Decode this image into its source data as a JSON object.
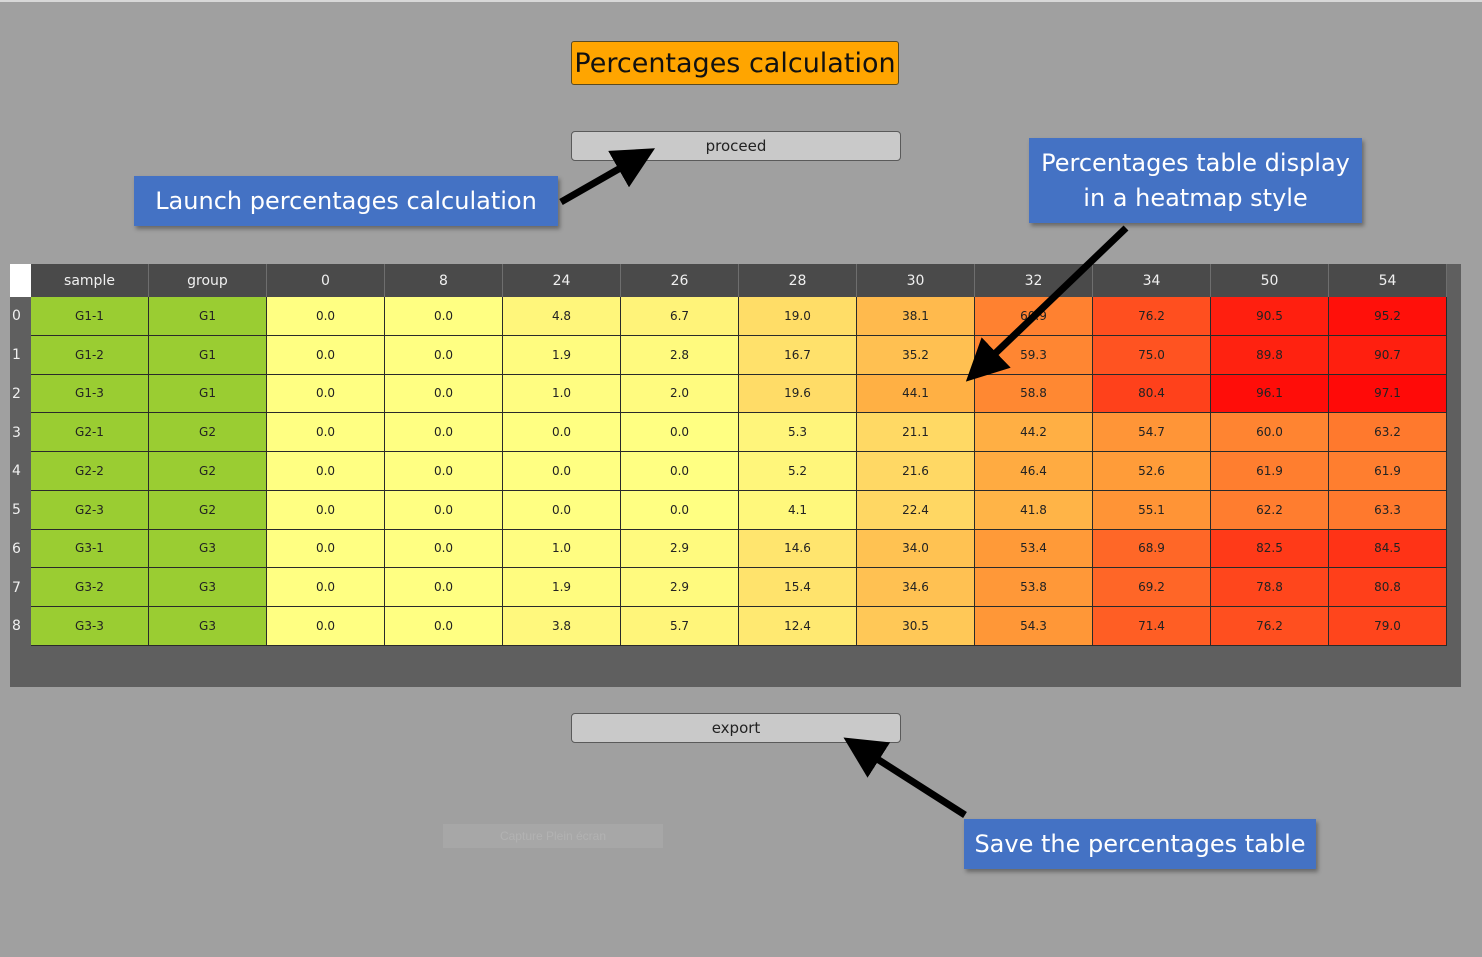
{
  "title": "Percentages calculation",
  "buttons": {
    "proceed": "proceed",
    "export": "export"
  },
  "callouts": {
    "launch": "Launch percentages calculation",
    "heatmap_line1": "Percentages table display",
    "heatmap_line2": "in a heatmap style",
    "save": "Save the percentages table"
  },
  "ghost_text": "Capture Plein écran",
  "colors": {
    "accent": "#ffa500",
    "callout": "#4472c4",
    "group_cell": "#9acd32"
  },
  "table": {
    "columns": [
      "sample",
      "group",
      "0",
      "8",
      "24",
      "26",
      "28",
      "30",
      "32",
      "34",
      "50",
      "54"
    ],
    "rows": [
      {
        "index": "0",
        "sample": "G1-1",
        "group": "G1",
        "values": [
          "0.0",
          "0.0",
          "4.8",
          "6.7",
          "19.0",
          "38.1",
          "60.9",
          "76.2",
          "90.5",
          "95.2"
        ]
      },
      {
        "index": "1",
        "sample": "G1-2",
        "group": "G1",
        "values": [
          "0.0",
          "0.0",
          "1.9",
          "2.8",
          "16.7",
          "35.2",
          "59.3",
          "75.0",
          "89.8",
          "90.7"
        ]
      },
      {
        "index": "2",
        "sample": "G1-3",
        "group": "G1",
        "values": [
          "0.0",
          "0.0",
          "1.0",
          "2.0",
          "19.6",
          "44.1",
          "58.8",
          "80.4",
          "96.1",
          "97.1"
        ]
      },
      {
        "index": "3",
        "sample": "G2-1",
        "group": "G2",
        "values": [
          "0.0",
          "0.0",
          "0.0",
          "0.0",
          "5.3",
          "21.1",
          "44.2",
          "54.7",
          "60.0",
          "63.2"
        ]
      },
      {
        "index": "4",
        "sample": "G2-2",
        "group": "G2",
        "values": [
          "0.0",
          "0.0",
          "0.0",
          "0.0",
          "5.2",
          "21.6",
          "46.4",
          "52.6",
          "61.9",
          "61.9"
        ]
      },
      {
        "index": "5",
        "sample": "G2-3",
        "group": "G2",
        "values": [
          "0.0",
          "0.0",
          "0.0",
          "0.0",
          "4.1",
          "22.4",
          "41.8",
          "55.1",
          "62.2",
          "63.3"
        ]
      },
      {
        "index": "6",
        "sample": "G3-1",
        "group": "G3",
        "values": [
          "0.0",
          "0.0",
          "1.0",
          "2.9",
          "14.6",
          "34.0",
          "53.4",
          "68.9",
          "82.5",
          "84.5"
        ]
      },
      {
        "index": "7",
        "sample": "G3-2",
        "group": "G3",
        "values": [
          "0.0",
          "0.0",
          "1.9",
          "2.9",
          "15.4",
          "34.6",
          "53.8",
          "69.2",
          "78.8",
          "80.8"
        ]
      },
      {
        "index": "8",
        "sample": "G3-3",
        "group": "G3",
        "values": [
          "0.0",
          "0.0",
          "3.8",
          "5.7",
          "12.4",
          "30.5",
          "54.3",
          "71.4",
          "76.2",
          "79.0"
        ]
      }
    ]
  }
}
